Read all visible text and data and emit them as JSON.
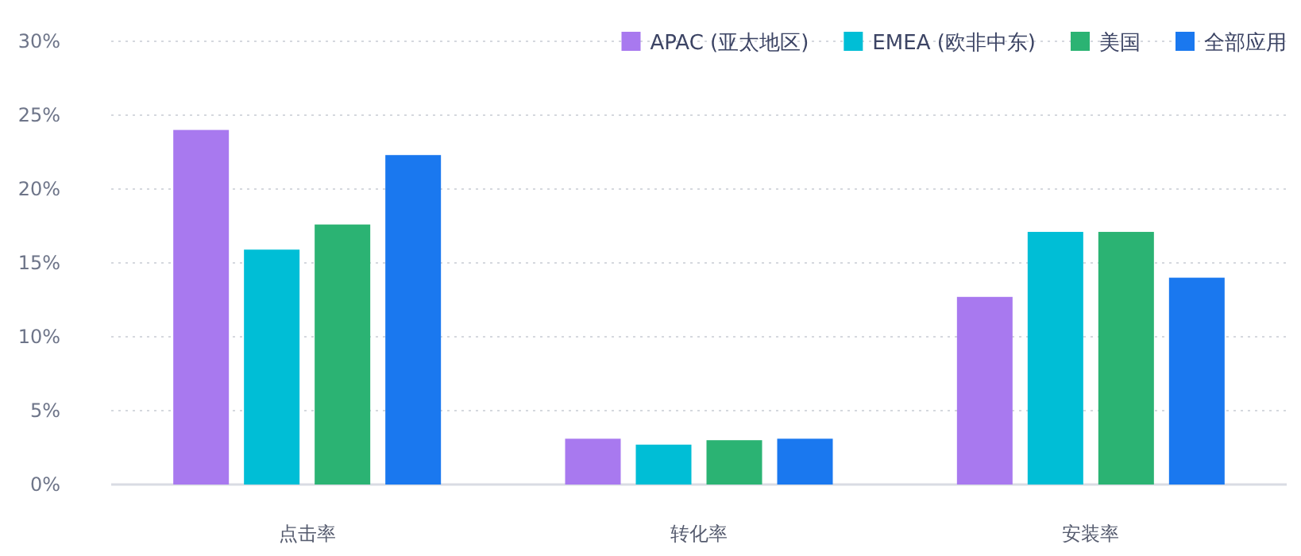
{
  "chart_data": {
    "type": "bar",
    "categories": [
      "点击率",
      "转化率",
      "安装率"
    ],
    "series": [
      {
        "name": "APAC (亚太地区)",
        "color": "#a879ef",
        "values": [
          24.0,
          3.1,
          12.7
        ]
      },
      {
        "name": "EMEA (欧非中东)",
        "color": "#00bed6",
        "values": [
          15.9,
          2.7,
          17.1
        ]
      },
      {
        "name": "美国",
        "color": "#2bb373",
        "values": [
          17.6,
          3.0,
          17.1
        ]
      },
      {
        "name": "全部应用",
        "color": "#1a78ef",
        "values": [
          22.3,
          3.1,
          14.0
        ]
      }
    ],
    "ylim": [
      0,
      30
    ],
    "yticks": [
      {
        "value": 0,
        "label": "0%"
      },
      {
        "value": 5,
        "label": "5%"
      },
      {
        "value": 10,
        "label": "10%"
      },
      {
        "value": 15,
        "label": "15%"
      },
      {
        "value": 20,
        "label": "20%"
      },
      {
        "value": 25,
        "label": "25%"
      },
      {
        "value": 30,
        "label": "30%"
      }
    ],
    "grid": "y",
    "legend": "top right"
  }
}
